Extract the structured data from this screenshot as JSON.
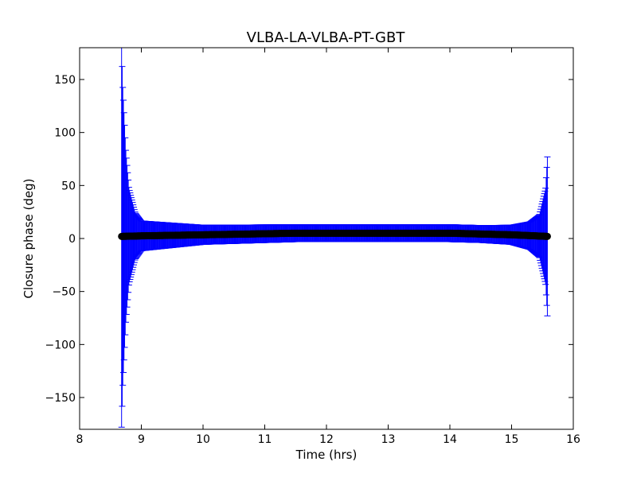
{
  "chart_data": {
    "type": "scatter",
    "title": "VLBA-LA-VLBA-PT-GBT",
    "xlabel": "Time (hrs)",
    "ylabel": "Closure phase (deg)",
    "xlim": [
      8,
      16
    ],
    "ylim": [
      -180,
      180
    ],
    "xticks": [
      8,
      9,
      10,
      11,
      12,
      13,
      14,
      15,
      16
    ],
    "yticks": [
      -150,
      -100,
      -50,
      0,
      50,
      100,
      150
    ],
    "ytick_labels": [
      "−150",
      "−100",
      "−50",
      "0",
      "50",
      "100",
      "150"
    ],
    "grid": false,
    "legend": "none",
    "marker_color": "#000000",
    "errorbar_color": "#0000ff",
    "series": [
      {
        "time_start": 8.68,
        "time_end": 15.58,
        "n_points": 700,
        "phase_deg": [
          [
            8.68,
            2
          ],
          [
            9.0,
            2.5
          ],
          [
            10.0,
            3.5
          ],
          [
            11.0,
            4.5
          ],
          [
            11.5,
            5
          ],
          [
            12.0,
            5
          ],
          [
            13.0,
            5
          ],
          [
            14.0,
            5
          ],
          [
            15.0,
            3.5
          ],
          [
            15.58,
            2
          ]
        ],
        "error_profile": {
          "description": "symmetric error bar half-widths (deg)",
          "points": [
            [
              8.68,
              180
            ],
            [
              8.7,
              140
            ],
            [
              8.75,
              80
            ],
            [
              8.8,
              45
            ],
            [
              8.9,
              22
            ],
            [
              9.0,
              14
            ],
            [
              10.0,
              9
            ],
            [
              11.5,
              8
            ],
            [
              13.0,
              8
            ],
            [
              14.5,
              8
            ],
            [
              15.0,
              9
            ],
            [
              15.3,
              13
            ],
            [
              15.45,
              20
            ],
            [
              15.55,
              45
            ],
            [
              15.58,
              75
            ]
          ]
        }
      }
    ]
  }
}
